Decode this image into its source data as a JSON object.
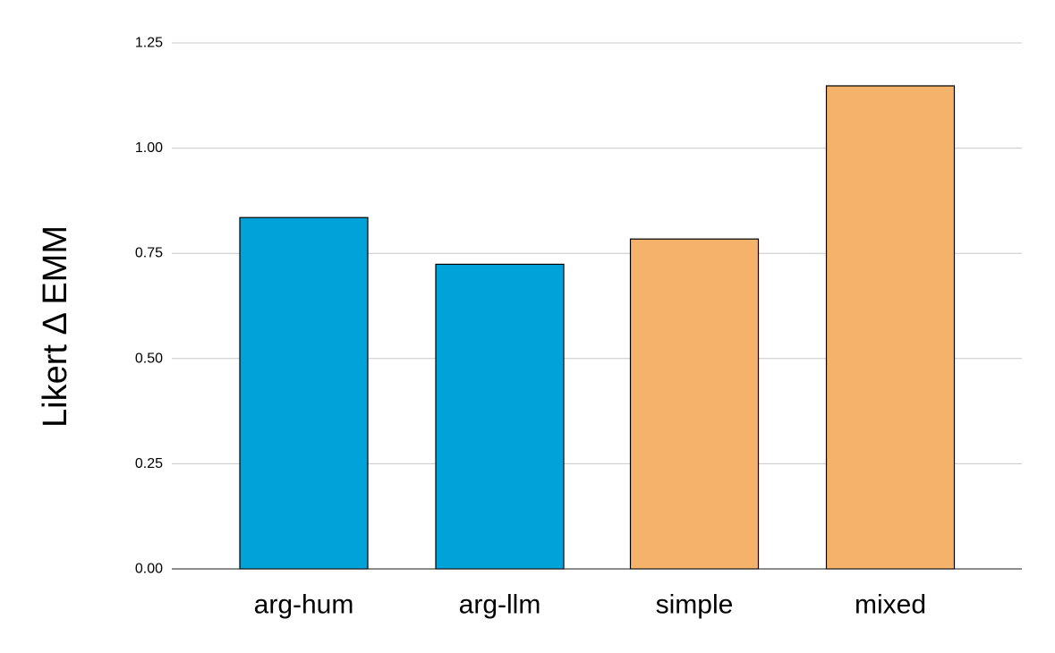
{
  "chart_data": {
    "type": "bar",
    "title": "",
    "xlabel": "",
    "ylabel": "Likert Δ EMM",
    "categories": [
      "arg-hum",
      "arg-llm",
      "simple",
      "mixed"
    ],
    "values": [
      0.835,
      0.724,
      0.784,
      1.148
    ],
    "bar_colors": [
      "#00a3d9",
      "#00a3d9",
      "#f5b26b",
      "#f5b26b"
    ],
    "ylim": [
      0,
      1.25
    ],
    "yticks": [
      0,
      0.25,
      0.5,
      0.75,
      1.0,
      1.25
    ],
    "ytick_labels": [
      "0.00",
      "0.25",
      "0.50",
      "0.75",
      "1.00",
      "1.25"
    ],
    "grid": true,
    "legend": "none"
  }
}
